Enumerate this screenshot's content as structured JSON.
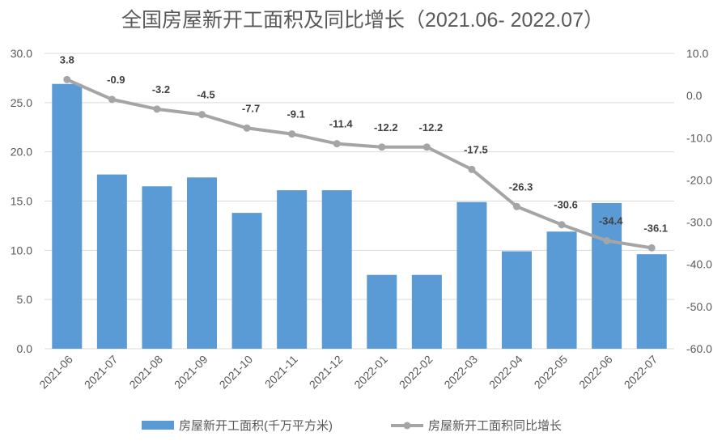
{
  "chart_data": {
    "type": "bar+line",
    "title": "全国房屋新开工面积及同比增长（2021.06- 2022.07）",
    "categories": [
      "2021-06",
      "2021-07",
      "2021-08",
      "2021-09",
      "2021-10",
      "2021-11",
      "2021-12",
      "2022-01",
      "2022-02",
      "2022-03",
      "2022-04",
      "2022-05",
      "2022-06",
      "2022-07"
    ],
    "series": [
      {
        "name": "房屋新开工面积(千万平方米)",
        "type": "bar",
        "axis": "left",
        "color": "#5B9BD5",
        "values": [
          26.9,
          17.7,
          16.5,
          17.4,
          13.8,
          16.1,
          16.1,
          7.5,
          7.5,
          14.9,
          9.9,
          11.9,
          14.8,
          9.6
        ]
      },
      {
        "name": "房屋新开工面积同比增长",
        "type": "line",
        "axis": "right",
        "color": "#A5A5A5",
        "values": [
          3.8,
          -0.9,
          -3.2,
          -4.5,
          -7.7,
          -9.1,
          -11.4,
          -12.2,
          -12.2,
          -17.5,
          -26.3,
          -30.6,
          -34.4,
          -36.1
        ],
        "labels": [
          "3.8",
          "-0.9",
          "-3.2",
          "-4.5",
          "-7.7",
          "-9.1",
          "-11.4",
          "-12.2",
          "-12.2",
          "-17.5",
          "-26.3",
          "-30.6",
          "-34.4",
          "-36.1"
        ]
      }
    ],
    "left_axis": {
      "ylim": [
        0,
        30
      ],
      "ticks": [
        "0.0",
        "5.0",
        "10.0",
        "15.0",
        "20.0",
        "25.0",
        "30.0"
      ]
    },
    "right_axis": {
      "ylim": [
        -60,
        10
      ],
      "ticks": [
        "-60.0",
        "-50.0",
        "-40.0",
        "-30.0",
        "-20.0",
        "-10.0",
        "0.0",
        "10.0"
      ]
    },
    "grid": true,
    "legend": "bottom"
  }
}
